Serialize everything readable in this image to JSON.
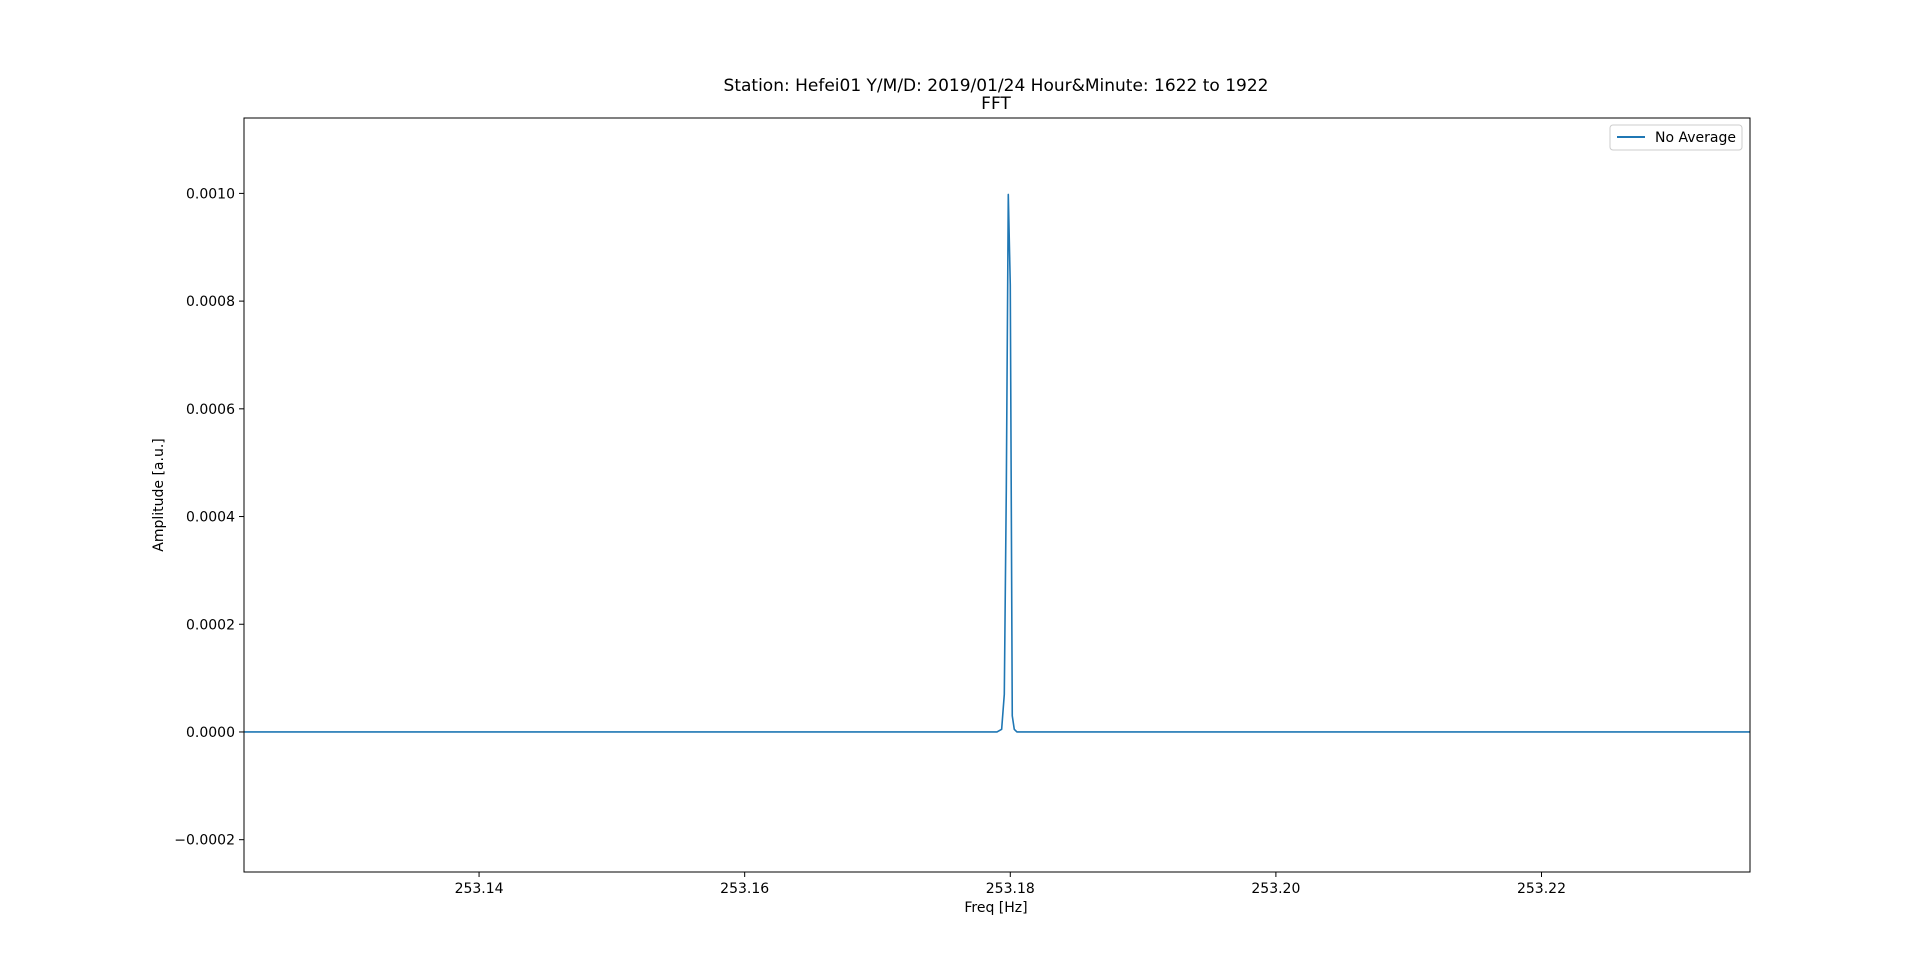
{
  "chart_data": {
    "type": "line",
    "title": "Station: Hefei01 Y/M/D: 2019/01/24 Hour&Minute: 1622 to 1922",
    "subtitle": "FFT",
    "xlabel": "Freq [Hz]",
    "ylabel": "Amplitude [a.u.]",
    "xlim": [
      253.1223,
      253.2357
    ],
    "ylim": [
      -0.00026,
      0.00114
    ],
    "xticks": [
      253.14,
      253.16,
      253.18,
      253.2,
      253.22
    ],
    "xtick_labels": [
      "253.14",
      "253.16",
      "253.18",
      "253.20",
      "253.22"
    ],
    "yticks": [
      -0.0002,
      0.0,
      0.0002,
      0.0004,
      0.0006,
      0.0008,
      0.001
    ],
    "ytick_labels": [
      "−0.0002",
      "0.0000",
      "0.0002",
      "0.0004",
      "0.0006",
      "0.0008",
      "0.0010"
    ],
    "grid": false,
    "legend_position": "top-right",
    "series": [
      {
        "name": "No Average",
        "color": "#1f77b4",
        "x": [
          253.1223,
          253.17,
          253.179,
          253.17935,
          253.17955,
          253.1797,
          253.17985,
          253.18,
          253.18015,
          253.1803,
          253.1805,
          253.19,
          253.2357
        ],
        "y": [
          0.0,
          0.0,
          0.0,
          5e-06,
          7e-05,
          0.00045,
          0.000998,
          0.00083,
          3e-05,
          5e-06,
          0.0,
          0.0,
          0.0
        ]
      }
    ]
  }
}
